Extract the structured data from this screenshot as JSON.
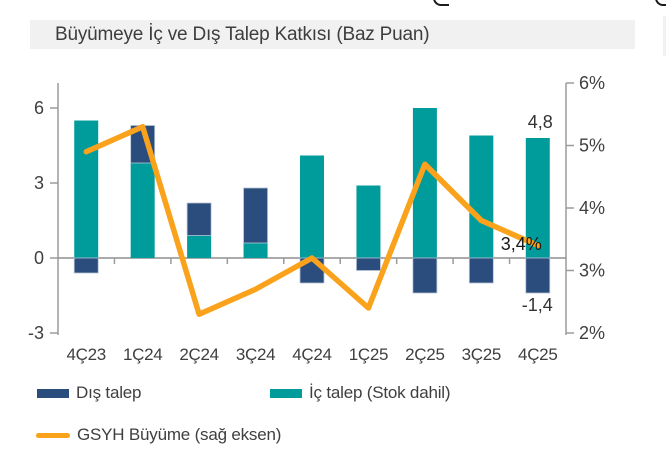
{
  "page": {
    "title": "Büyümeye İç ve Dış Talep Katkısı (Baz Puan)"
  },
  "chart_data": {
    "type": "bar",
    "subtype": "stacked-bars-with-line-overlay",
    "title": "Büyümeye İç ve Dış Talep Katkısı (Baz Puan)",
    "categories": [
      "4Ç23",
      "1Ç24",
      "2Ç24",
      "3Ç24",
      "4Ç24",
      "1Ç25",
      "2Ç25",
      "3Ç25",
      "4Ç25"
    ],
    "series": [
      {
        "name": "Dış talep",
        "type": "bar",
        "axis": "left",
        "color": "#2A4D7E",
        "values": [
          -0.6,
          1.5,
          1.3,
          2.2,
          -1.0,
          -0.5,
          -1.4,
          -1.0,
          -1.4
        ]
      },
      {
        "name": "İç talep (Stok dahil)",
        "type": "bar",
        "axis": "left",
        "color": "#009C9C",
        "values": [
          5.5,
          3.8,
          0.9,
          0.6,
          4.1,
          2.9,
          6.0,
          4.9,
          4.8
        ]
      },
      {
        "name": "GSYH Büyüme (sağ eksen)",
        "type": "line",
        "axis": "right",
        "color": "#FAA21B",
        "values": [
          4.9,
          5.3,
          2.3,
          2.7,
          3.2,
          2.4,
          4.7,
          3.8,
          3.4
        ]
      }
    ],
    "left_axis": {
      "min": -3,
      "max": 6,
      "tick_values": [
        6,
        3,
        0,
        -3
      ],
      "tick_labels": [
        "6",
        "3",
        "0",
        "-3"
      ]
    },
    "right_axis": {
      "min": 2,
      "max": 6,
      "tick_values": [
        6,
        5,
        4,
        3,
        2
      ],
      "tick_labels": [
        "6%",
        "5%",
        "4%",
        "3%",
        "2%"
      ]
    },
    "grid": "off",
    "legend_position": "bottom",
    "annotations": [
      {
        "text": "4,8",
        "anchor": "last-ic-talep-bar-top"
      },
      {
        "text": "-1,4",
        "anchor": "last-dis-talep-bar-bottom"
      },
      {
        "text": "3,4%",
        "anchor": "line-end"
      }
    ]
  },
  "legend": {
    "items": [
      {
        "label": "Dış talep",
        "marker": "rect",
        "color": "#2A4D7E"
      },
      {
        "label": "İç talep (Stok dahil)",
        "marker": "rect",
        "color": "#009C9C"
      },
      {
        "label": "GSYH Büyüme (sağ eksen)",
        "marker": "line",
        "color": "#FAA21B"
      }
    ]
  },
  "colors": {
    "dis_talep": "#2A4D7E",
    "ic_talep": "#009C9C",
    "gsyh_line": "#FAA21B",
    "axis": "#9B9B9B",
    "zero_line": "#8F8F8F",
    "text": "#3F3F3F",
    "title_bg": "#F1F1F1"
  }
}
